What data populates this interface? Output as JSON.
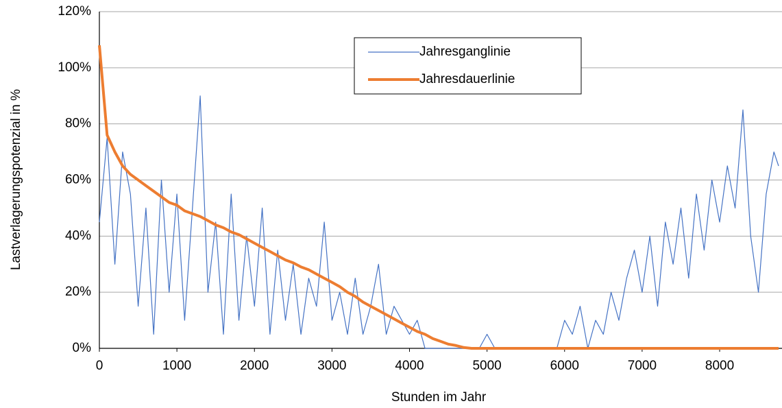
{
  "chart_data": {
    "type": "line",
    "xlabel": "Stunden im Jahr",
    "ylabel": "Lastverlagerungspotenzial in %",
    "x": [
      0,
      100,
      200,
      300,
      400,
      500,
      600,
      700,
      800,
      900,
      1000,
      1100,
      1200,
      1300,
      1400,
      1500,
      1600,
      1700,
      1800,
      1900,
      2000,
      2100,
      2200,
      2300,
      2400,
      2500,
      2600,
      2700,
      2800,
      2900,
      3000,
      3100,
      3200,
      3300,
      3400,
      3500,
      3600,
      3700,
      3800,
      3900,
      4000,
      4100,
      4200,
      4300,
      4400,
      4500,
      4600,
      4700,
      4800,
      4900,
      5000,
      5100,
      5200,
      5300,
      5400,
      5500,
      5600,
      5700,
      5800,
      5900,
      6000,
      6100,
      6200,
      6300,
      6400,
      6500,
      6600,
      6700,
      6800,
      6900,
      7000,
      7100,
      7200,
      7300,
      7400,
      7500,
      7600,
      7700,
      7800,
      7900,
      8000,
      8100,
      8200,
      8300,
      8400,
      8500,
      8600,
      8700,
      8760
    ],
    "series": [
      {
        "name": "Jahresganglinie",
        "color": "#4472c4",
        "width": 1.2,
        "values": [
          45,
          75,
          30,
          70,
          55,
          15,
          50,
          5,
          60,
          20,
          55,
          10,
          50,
          90,
          20,
          45,
          5,
          55,
          10,
          40,
          15,
          50,
          5,
          35,
          10,
          30,
          5,
          25,
          15,
          45,
          10,
          20,
          5,
          25,
          5,
          15,
          30,
          5,
          15,
          10,
          5,
          10,
          0,
          0,
          0,
          0,
          0,
          0,
          0,
          0,
          5,
          0,
          0,
          0,
          0,
          0,
          0,
          0,
          0,
          0,
          10,
          5,
          15,
          0,
          10,
          5,
          20,
          10,
          25,
          35,
          20,
          40,
          15,
          45,
          30,
          50,
          25,
          55,
          35,
          60,
          45,
          65,
          50,
          85,
          40,
          20,
          55,
          70,
          65
        ]
      },
      {
        "name": "Jahresdauerlinie",
        "color": "#ed7d31",
        "width": 4,
        "values": [
          108,
          76,
          70,
          65,
          62,
          60,
          58,
          56,
          54,
          52,
          51,
          49,
          48,
          47,
          45.5,
          44,
          43,
          41.5,
          40.5,
          39,
          37.5,
          36,
          34.5,
          33,
          31.5,
          30.5,
          29,
          28,
          26.5,
          25,
          23.5,
          22,
          20,
          18.5,
          16.5,
          15,
          13.5,
          12,
          10.5,
          9,
          7.5,
          6,
          5,
          3.5,
          2.5,
          1.5,
          1,
          0.3,
          0,
          0,
          0,
          0,
          0,
          0,
          0,
          0,
          0,
          0,
          0,
          0,
          0,
          0,
          0,
          0,
          0,
          0,
          0,
          0,
          0,
          0,
          0,
          0,
          0,
          0,
          0,
          0,
          0,
          0,
          0,
          0,
          0,
          0,
          0,
          0,
          0,
          0,
          0,
          0,
          0
        ]
      }
    ],
    "xlim": [
      0,
      8760
    ],
    "xticks": [
      0,
      1000,
      2000,
      3000,
      4000,
      5000,
      6000,
      7000,
      8000
    ],
    "ylim": [
      0,
      120
    ],
    "yticks": [
      {
        "value": 0,
        "label": "0%"
      },
      {
        "value": 20,
        "label": "20%"
      },
      {
        "value": 40,
        "label": "40%"
      },
      {
        "value": 60,
        "label": "60%"
      },
      {
        "value": 80,
        "label": "80%"
      },
      {
        "value": 100,
        "label": "100%"
      },
      {
        "value": 120,
        "label": "120%"
      }
    ],
    "grid": true,
    "legend": "top"
  }
}
